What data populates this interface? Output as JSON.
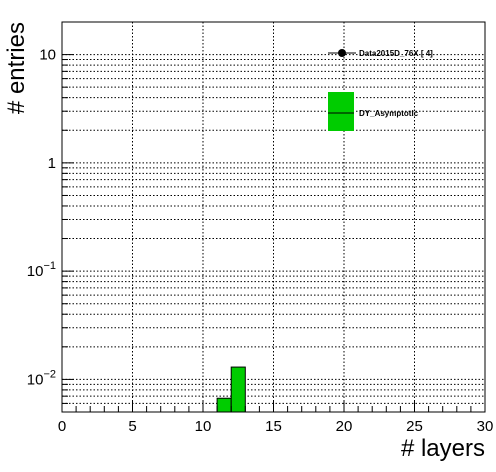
{
  "chart_data": {
    "type": "bar",
    "title": "",
    "xlabel": "# layers",
    "ylabel": "# entries",
    "xlim": [
      0,
      30
    ],
    "ylim": [
      0.005,
      20
    ],
    "log_y": true,
    "grid": true,
    "x_ticks": [
      {
        "value": 0,
        "label": "0"
      },
      {
        "value": 5,
        "label": "5"
      },
      {
        "value": 10,
        "label": "10"
      },
      {
        "value": 15,
        "label": "15"
      },
      {
        "value": 20,
        "label": "20"
      },
      {
        "value": 25,
        "label": "25"
      },
      {
        "value": 30,
        "label": "30"
      }
    ],
    "y_ticks": [
      {
        "value": 10,
        "label": "10"
      },
      {
        "value": 1,
        "label": "1"
      },
      {
        "value": 0.1,
        "label": "10",
        "exp": "−1"
      },
      {
        "value": 0.01,
        "label": "10",
        "exp": "−2"
      }
    ],
    "legend_position": "top-right",
    "series": [
      {
        "name": "DY_Asymptotic",
        "kind": "histogram",
        "color": "#00cc00",
        "bins": [
          {
            "x0": 11,
            "x1": 12,
            "value": 0.0067
          },
          {
            "x0": 12,
            "x1": 13,
            "value": 0.013
          }
        ]
      },
      {
        "name": "Data2015D_76X [        4]",
        "kind": "points",
        "color": "#000000",
        "points": []
      }
    ]
  }
}
